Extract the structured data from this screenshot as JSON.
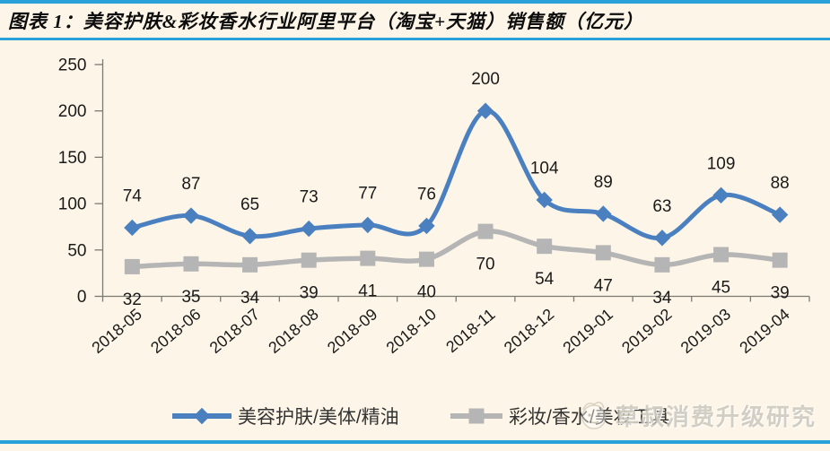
{
  "title": {
    "label": "图表 1：美容护肤&彩妆香水行业阿里平台（淘宝+天猫）销售额（亿元）"
  },
  "watermark": {
    "text": "草叔消费升级研究",
    "logo": "cartoon-face-logo"
  },
  "colors": {
    "background": "#FDF6E8",
    "accent_blue": "#2AA0D8",
    "series1_blue": "#4B80C0",
    "series2_gray": "#B5B5B5",
    "axis_gray": "#7a7a72",
    "label_black": "#1a1a1a"
  },
  "chart_data": {
    "type": "line",
    "smooth": true,
    "categories": [
      "2018-05",
      "2018-06",
      "2018-07",
      "2018-08",
      "2018-09",
      "2018-10",
      "2018-11",
      "2018-12",
      "2019-01",
      "2019-02",
      "2019-03",
      "2019-04"
    ],
    "series": [
      {
        "name": "美容护肤/美体/精油",
        "values": [
          74,
          87,
          65,
          73,
          77,
          76,
          200,
          104,
          89,
          63,
          109,
          88
        ],
        "color": "#4B80C0",
        "marker": "diamond",
        "label_position": "above"
      },
      {
        "name": "彩妆/香水/美妆工具",
        "values": [
          32,
          35,
          34,
          39,
          41,
          40,
          70,
          54,
          47,
          34,
          45,
          39
        ],
        "color": "#B5B5B5",
        "marker": "square",
        "label_position": "below"
      }
    ],
    "ylim": [
      0,
      250
    ],
    "yticks": [
      0,
      50,
      100,
      150,
      200,
      250
    ],
    "grid": false,
    "legend_position": "bottom"
  }
}
